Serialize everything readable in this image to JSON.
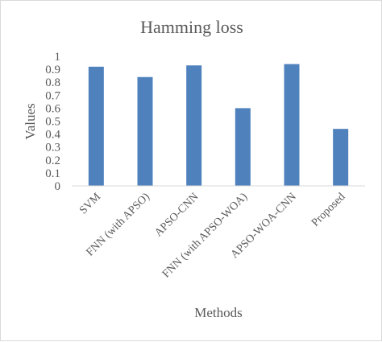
{
  "chart_data": {
    "type": "bar",
    "title": "Hamming loss",
    "xlabel": "Methods",
    "ylabel": "Values",
    "categories": [
      "SVM",
      "FNN (with APSO)",
      "APSO-CNN",
      "FNN (with APSO-WOA)",
      "APSO-WOA-CNN",
      "Proposed"
    ],
    "values": [
      0.92,
      0.84,
      0.93,
      0.6,
      0.94,
      0.44
    ],
    "ylim": [
      0,
      1
    ],
    "yticks": [
      "0",
      "0.1",
      "0.2",
      "0.3",
      "0.4",
      "0.5",
      "0.6",
      "0.7",
      "0.8",
      "0.9",
      "1"
    ],
    "grid": false,
    "legend": "none",
    "bar_color": "#4f81bd"
  }
}
